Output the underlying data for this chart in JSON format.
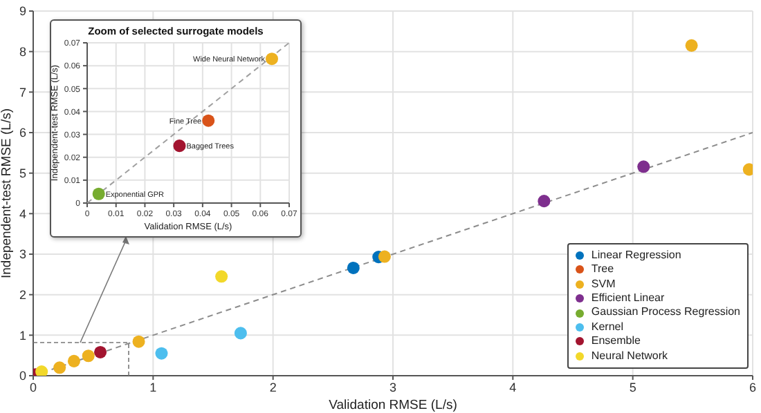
{
  "chart_data": [
    {
      "type": "scatter",
      "xlabel": "Validation RMSE (L/s)",
      "ylabel": "Independent-test RMSE (L/s)",
      "xlim": [
        0,
        6
      ],
      "xticks": [
        0,
        1,
        2,
        3,
        4,
        5,
        6
      ],
      "ylim": [
        0,
        9
      ],
      "yticks": [
        0,
        1,
        2,
        3,
        4,
        5,
        6,
        7,
        8,
        9
      ],
      "grid": true,
      "legend": "bottom right",
      "marker": "circle",
      "series": [
        {
          "type": "line",
          "color": "#8c8c8c",
          "line_style": "dashed",
          "marker": "none",
          "x": [
            0,
            6
          ],
          "values": [
            0,
            6
          ]
        },
        {
          "name": "Linear Regression",
          "color": "#0072bd",
          "x": [
            2.67,
            2.88
          ],
          "values": [
            2.66,
            2.93
          ]
        },
        {
          "name": "Tree",
          "color": "#d95319"
        },
        {
          "name": "SVM",
          "color": "#edb120",
          "x": [
            0.22,
            0.34,
            0.46,
            0.88,
            2.93,
            5.49,
            5.97
          ],
          "values": [
            0.2,
            0.36,
            0.49,
            0.84,
            2.94,
            8.15,
            5.09
          ]
        },
        {
          "name": "Efficient Linear",
          "color": "#7e2f8e",
          "x": [
            4.26,
            5.09
          ],
          "values": [
            4.31,
            5.16
          ]
        },
        {
          "name": "Gaussian Process Regression",
          "color": "#77ac30"
        },
        {
          "name": "Kernel",
          "color": "#4dbeee",
          "x": [
            1.07,
            1.73
          ],
          "values": [
            0.55,
            1.05
          ]
        },
        {
          "name": "Ensemble",
          "color": "#a2142f",
          "x": [
            0.02,
            0.56
          ],
          "values": [
            0.03,
            0.58
          ]
        },
        {
          "name": "Neural Network",
          "color": "#f2d82a",
          "x": [
            0.07,
            1.57
          ],
          "values": [
            0.1,
            2.45
          ]
        }
      ]
    },
    {
      "type": "scatter",
      "title": "Zoom of selected surrogate models",
      "xlabel": "Validation RMSE (L/s)",
      "ylabel": "Independent-test RMSE (L/s)",
      "xlim": [
        0,
        0.07
      ],
      "xticks": [
        0,
        0.01,
        0.02,
        0.03,
        0.04,
        0.05,
        0.06,
        0.07
      ],
      "ylim": [
        0,
        0.07
      ],
      "yticks": [
        0,
        0.01,
        0.02,
        0.03,
        0.04,
        0.05,
        0.06,
        0.07
      ],
      "grid": true,
      "marker": "circle",
      "series": [
        {
          "type": "line",
          "color": "#a0a0a0",
          "line_style": "dashed",
          "marker": "none",
          "x": [
            0,
            0.07
          ],
          "values": [
            0,
            0.07
          ]
        },
        {
          "name": "Wide Neural Network",
          "color": "#edb120",
          "x": [
            0.064
          ],
          "values": [
            0.063
          ]
        },
        {
          "name": "Fine Tree",
          "color": "#d95319",
          "x": [
            0.042
          ],
          "values": [
            0.036
          ]
        },
        {
          "name": "Bagged Trees",
          "color": "#a2142f",
          "x": [
            0.032
          ],
          "values": [
            0.025
          ]
        },
        {
          "name": "Exponential GPR",
          "color": "#77ac30",
          "x": [
            0.004
          ],
          "values": [
            0.004
          ]
        }
      ]
    }
  ]
}
